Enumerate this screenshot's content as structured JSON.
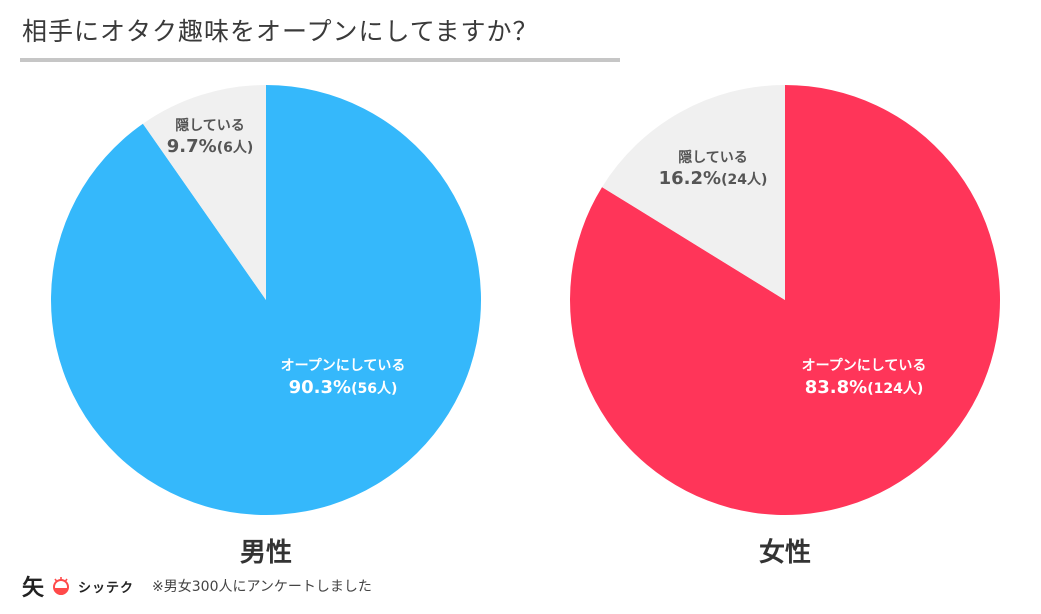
{
  "header": {
    "title": "相手にオタク趣味をオープンにしてますか？"
  },
  "colors": {
    "male": "#35b8fb",
    "female": "#ff3559",
    "hidden": "#f0f0f0",
    "brand_red": "#ff4a4a"
  },
  "chart_data": [
    {
      "type": "pie",
      "title": "男性",
      "slices": [
        {
          "label": "オープンにしている",
          "percent": 90.3,
          "value_text": "90.3%",
          "count_text": "(56人)",
          "count": 56
        },
        {
          "label": "隠している",
          "percent": 9.7,
          "value_text": "9.7%",
          "count_text": "(6人)",
          "count": 6
        }
      ]
    },
    {
      "type": "pie",
      "title": "女性",
      "slices": [
        {
          "label": "オープンにしている",
          "percent": 83.8,
          "value_text": "83.8%",
          "count_text": "(124人)",
          "count": 124
        },
        {
          "label": "隠している",
          "percent": 16.2,
          "value_text": "16.2%",
          "count_text": "(24人)",
          "count": 24
        }
      ]
    }
  ],
  "footer": {
    "brand_kanji": "矢",
    "brand_name": "シッテク",
    "note": "※男女300人にアンケートしました"
  }
}
